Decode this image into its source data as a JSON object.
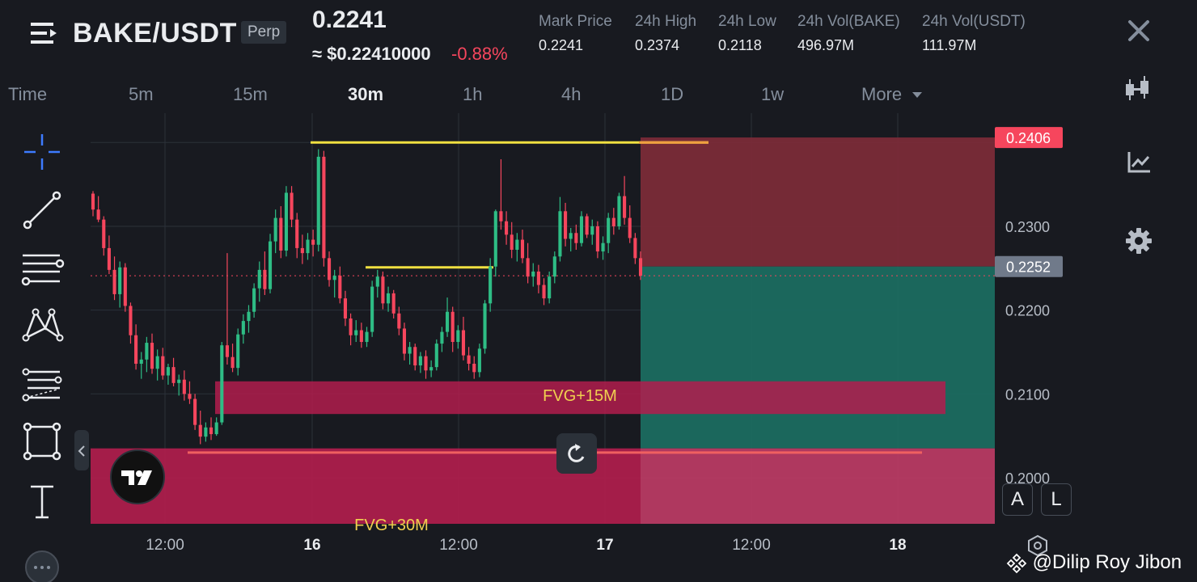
{
  "header": {
    "pair": "BAKE/USDT",
    "contract_type": "Perp",
    "last_price": "0.2241",
    "usd_price": "≈ $0.22410000",
    "change_pct": "-0.88%",
    "stats": [
      {
        "label": "Mark Price",
        "value": "0.2241"
      },
      {
        "label": "24h High",
        "value": "0.2374"
      },
      {
        "label": "24h Low",
        "value": "0.2118"
      },
      {
        "label": "24h Vol(BAKE)",
        "value": "496.97M"
      },
      {
        "label": "24h Vol(USDT)",
        "value": "111.97M"
      }
    ]
  },
  "timeframes": {
    "items": [
      "Time",
      "5m",
      "15m",
      "30m",
      "1h",
      "4h",
      "1D",
      "1w",
      "More"
    ],
    "active": "30m"
  },
  "icons": {
    "menu": "menu-icon",
    "close": "close-icon",
    "candles": "candlestick-icon",
    "indicators": "indicator-chart-icon",
    "settings": "gear-icon",
    "crosshair": "crosshair-icon",
    "trendline": "trend-line-icon",
    "horizontal_lines": "horizontal-lines-icon",
    "pattern": "pattern-icon",
    "fib": "fib-retracement-icon",
    "rectangle": "rectangle-icon",
    "text": "text-icon",
    "reset": "reset-icon"
  },
  "chart_data": {
    "type": "candlestick",
    "symbol": "BAKE/USDT",
    "interval": "30m",
    "price_axis": {
      "ticks": [
        "0.2300",
        "0.2200",
        "0.2100",
        "0.2000"
      ],
      "range": [
        0.1945,
        0.2435
      ],
      "highlight_labels": [
        {
          "value": "0.2406",
          "style": "red"
        },
        {
          "value": "0.2252",
          "style": "grey"
        }
      ]
    },
    "time_axis": {
      "ticks": [
        {
          "label": "12:00",
          "bold": false
        },
        {
          "label": "16",
          "bold": true
        },
        {
          "label": "12:00",
          "bold": false
        },
        {
          "label": "17",
          "bold": true
        },
        {
          "label": "12:00",
          "bold": false
        },
        {
          "label": "18",
          "bold": true
        }
      ]
    },
    "current_price": 0.2241,
    "zones": [
      {
        "label": "FVG+15M",
        "top": 0.2115,
        "bottom": 0.2076
      },
      {
        "label": "FVG+30M",
        "top": 0.2035,
        "bottom": 0.1945
      }
    ],
    "position": {
      "side": "short",
      "entry": 0.2252,
      "stop": 0.2406,
      "target": 0.2035
    },
    "levels": [
      0.24,
      0.2251,
      0.203
    ],
    "candles": [
      [
        0.2339,
        0.2342,
        0.2312,
        0.232
      ],
      [
        0.232,
        0.2336,
        0.2305,
        0.2308
      ],
      [
        0.2308,
        0.2312,
        0.2265,
        0.2274
      ],
      [
        0.2274,
        0.2289,
        0.2243,
        0.2248
      ],
      [
        0.2248,
        0.2264,
        0.2212,
        0.2219
      ],
      [
        0.2219,
        0.2258,
        0.2203,
        0.2251
      ],
      [
        0.2251,
        0.2256,
        0.2198,
        0.2205
      ],
      [
        0.2205,
        0.2209,
        0.216,
        0.217
      ],
      [
        0.217,
        0.2183,
        0.2129,
        0.2136
      ],
      [
        0.2136,
        0.215,
        0.2118,
        0.2141
      ],
      [
        0.2141,
        0.2168,
        0.2126,
        0.2161
      ],
      [
        0.2161,
        0.2172,
        0.2124,
        0.213
      ],
      [
        0.213,
        0.2153,
        0.2116,
        0.2145
      ],
      [
        0.2145,
        0.2155,
        0.2117,
        0.2122
      ],
      [
        0.2122,
        0.2136,
        0.2111,
        0.2132
      ],
      [
        0.2132,
        0.2143,
        0.2109,
        0.2113
      ],
      [
        0.2113,
        0.2123,
        0.2098,
        0.2117
      ],
      [
        0.2117,
        0.2128,
        0.2092,
        0.21
      ],
      [
        0.21,
        0.2115,
        0.2088,
        0.2094
      ],
      [
        0.2094,
        0.21,
        0.2057,
        0.2063
      ],
      [
        0.2063,
        0.208,
        0.204,
        0.2049
      ],
      [
        0.2049,
        0.2066,
        0.2043,
        0.206
      ],
      [
        0.206,
        0.2072,
        0.2045,
        0.2052
      ],
      [
        0.2052,
        0.2072,
        0.205,
        0.2066
      ],
      [
        0.2066,
        0.2162,
        0.2063,
        0.2158
      ],
      [
        0.2158,
        0.2268,
        0.2135,
        0.2144
      ],
      [
        0.2144,
        0.216,
        0.2126,
        0.2131
      ],
      [
        0.2131,
        0.2178,
        0.2122,
        0.2171
      ],
      [
        0.2171,
        0.2195,
        0.216,
        0.2187
      ],
      [
        0.2187,
        0.2206,
        0.2173,
        0.2198
      ],
      [
        0.2198,
        0.2232,
        0.2191,
        0.2226
      ],
      [
        0.2226,
        0.2258,
        0.221,
        0.2248
      ],
      [
        0.2248,
        0.227,
        0.2218,
        0.2225
      ],
      [
        0.2225,
        0.2291,
        0.222,
        0.2282
      ],
      [
        0.2282,
        0.232,
        0.2268,
        0.231
      ],
      [
        0.231,
        0.2324,
        0.2262,
        0.2271
      ],
      [
        0.2271,
        0.2348,
        0.2264,
        0.234
      ],
      [
        0.234,
        0.2348,
        0.2299,
        0.2308
      ],
      [
        0.2308,
        0.2316,
        0.2262,
        0.2274
      ],
      [
        0.2274,
        0.229,
        0.2255,
        0.2268
      ],
      [
        0.2268,
        0.2292,
        0.226,
        0.2284
      ],
      [
        0.2284,
        0.2296,
        0.2264,
        0.2278
      ],
      [
        0.2278,
        0.2392,
        0.227,
        0.2383
      ],
      [
        0.2383,
        0.239,
        0.2252,
        0.2262
      ],
      [
        0.2262,
        0.227,
        0.2228,
        0.2236
      ],
      [
        0.2236,
        0.2248,
        0.2215,
        0.2241
      ],
      [
        0.2241,
        0.2252,
        0.2208,
        0.2214
      ],
      [
        0.2214,
        0.2223,
        0.2181,
        0.219
      ],
      [
        0.219,
        0.2196,
        0.2158,
        0.217
      ],
      [
        0.217,
        0.2188,
        0.2162,
        0.2176
      ],
      [
        0.2176,
        0.2185,
        0.2155,
        0.2162
      ],
      [
        0.2162,
        0.218,
        0.2156,
        0.2174
      ],
      [
        0.2174,
        0.2235,
        0.2168,
        0.2228
      ],
      [
        0.2228,
        0.2248,
        0.2215,
        0.224
      ],
      [
        0.224,
        0.2246,
        0.2201,
        0.2208
      ],
      [
        0.2208,
        0.2228,
        0.2198,
        0.222
      ],
      [
        0.222,
        0.2224,
        0.219,
        0.2196
      ],
      [
        0.2196,
        0.2204,
        0.217,
        0.2178
      ],
      [
        0.2178,
        0.2185,
        0.214,
        0.2148
      ],
      [
        0.2148,
        0.2162,
        0.2135,
        0.2156
      ],
      [
        0.2156,
        0.216,
        0.2128,
        0.2134
      ],
      [
        0.2134,
        0.215,
        0.2125,
        0.2145
      ],
      [
        0.2145,
        0.2152,
        0.2118,
        0.2128
      ],
      [
        0.2128,
        0.214,
        0.212,
        0.2132
      ],
      [
        0.2132,
        0.2165,
        0.2128,
        0.216
      ],
      [
        0.216,
        0.218,
        0.215,
        0.2174
      ],
      [
        0.2174,
        0.2215,
        0.2168,
        0.2198
      ],
      [
        0.2198,
        0.2204,
        0.215,
        0.2162
      ],
      [
        0.2162,
        0.2182,
        0.2154,
        0.2176
      ],
      [
        0.2176,
        0.2192,
        0.214,
        0.2146
      ],
      [
        0.2146,
        0.2156,
        0.2128,
        0.2136
      ],
      [
        0.2136,
        0.2145,
        0.2118,
        0.2126
      ],
      [
        0.2126,
        0.216,
        0.212,
        0.2154
      ],
      [
        0.2154,
        0.2212,
        0.2148,
        0.2208
      ],
      [
        0.2208,
        0.2262,
        0.2198,
        0.2252
      ],
      [
        0.2252,
        0.232,
        0.224,
        0.2318
      ],
      [
        0.2318,
        0.238,
        0.2296,
        0.2306
      ],
      [
        0.2306,
        0.2318,
        0.2278,
        0.229
      ],
      [
        0.229,
        0.2305,
        0.2262,
        0.2272
      ],
      [
        0.2272,
        0.2292,
        0.2258,
        0.2284
      ],
      [
        0.2284,
        0.2296,
        0.2256,
        0.2262
      ],
      [
        0.2262,
        0.228,
        0.2232,
        0.224
      ],
      [
        0.224,
        0.2256,
        0.2228,
        0.2246
      ],
      [
        0.2246,
        0.2254,
        0.222,
        0.223
      ],
      [
        0.223,
        0.2238,
        0.2206,
        0.2214
      ],
      [
        0.2214,
        0.2246,
        0.2208,
        0.224
      ],
      [
        0.224,
        0.227,
        0.2232,
        0.2264
      ],
      [
        0.2264,
        0.2335,
        0.2258,
        0.2318
      ],
      [
        0.2318,
        0.2328,
        0.2276,
        0.2285
      ],
      [
        0.2285,
        0.2298,
        0.227,
        0.2292
      ],
      [
        0.2292,
        0.2302,
        0.2272,
        0.228
      ],
      [
        0.228,
        0.2318,
        0.2276,
        0.2312
      ],
      [
        0.2312,
        0.2315,
        0.2286,
        0.229
      ],
      [
        0.229,
        0.2308,
        0.2278,
        0.23
      ],
      [
        0.23,
        0.2306,
        0.2262,
        0.227
      ],
      [
        0.227,
        0.2288,
        0.226,
        0.228
      ],
      [
        0.228,
        0.2316,
        0.2268,
        0.231
      ],
      [
        0.231,
        0.2322,
        0.229,
        0.23
      ],
      [
        0.23,
        0.234,
        0.2296,
        0.2336
      ],
      [
        0.2336,
        0.236,
        0.2302,
        0.231
      ],
      [
        0.231,
        0.2325,
        0.228,
        0.2286
      ],
      [
        0.2286,
        0.2292,
        0.2255,
        0.2262
      ],
      [
        0.2262,
        0.227,
        0.2236,
        0.2241
      ]
    ]
  },
  "buttons": {
    "a_label": "A",
    "l_label": "L"
  },
  "watermark": "@Dilip Roy Jibon",
  "colors": {
    "up": "#2ebd85",
    "down": "#f6465d",
    "level": "#f0e040",
    "stop_zone": "#7a2b38",
    "target_zone": "#1b6b60",
    "fvg": "#b11d4d",
    "fvg_label": "#f0d050"
  }
}
